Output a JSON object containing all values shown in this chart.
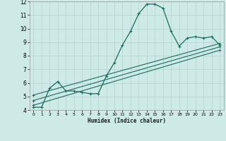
{
  "xlabel": "Humidex (Indice chaleur)",
  "bg_color": "#ceeae6",
  "grid_color": "#b8d8d4",
  "line_color": "#1a6b60",
  "xlim": [
    -0.5,
    23.5
  ],
  "ylim": [
    4,
    12
  ],
  "xticks": [
    0,
    1,
    2,
    3,
    4,
    5,
    6,
    7,
    8,
    9,
    10,
    11,
    12,
    13,
    14,
    15,
    16,
    17,
    18,
    19,
    20,
    21,
    22,
    23
  ],
  "yticks": [
    4,
    5,
    6,
    7,
    8,
    9,
    10,
    11,
    12
  ],
  "line1_x": [
    0,
    1,
    2,
    3,
    4,
    5,
    6,
    7,
    8,
    9,
    10,
    11,
    12,
    13,
    14,
    15,
    16,
    17,
    18,
    19,
    20,
    21,
    22,
    23
  ],
  "line1_y": [
    4.2,
    4.2,
    5.6,
    6.1,
    5.4,
    5.4,
    5.3,
    5.2,
    5.2,
    6.5,
    7.5,
    8.8,
    9.8,
    11.1,
    11.8,
    11.8,
    11.5,
    9.8,
    8.7,
    9.3,
    9.4,
    9.3,
    9.4,
    8.8
  ],
  "line2_x": [
    0,
    23
  ],
  "line2_y": [
    4.35,
    8.4
  ],
  "line3_x": [
    0,
    23
  ],
  "line3_y": [
    4.7,
    8.65
  ],
  "line4_x": [
    0,
    23
  ],
  "line4_y": [
    5.1,
    8.9
  ]
}
